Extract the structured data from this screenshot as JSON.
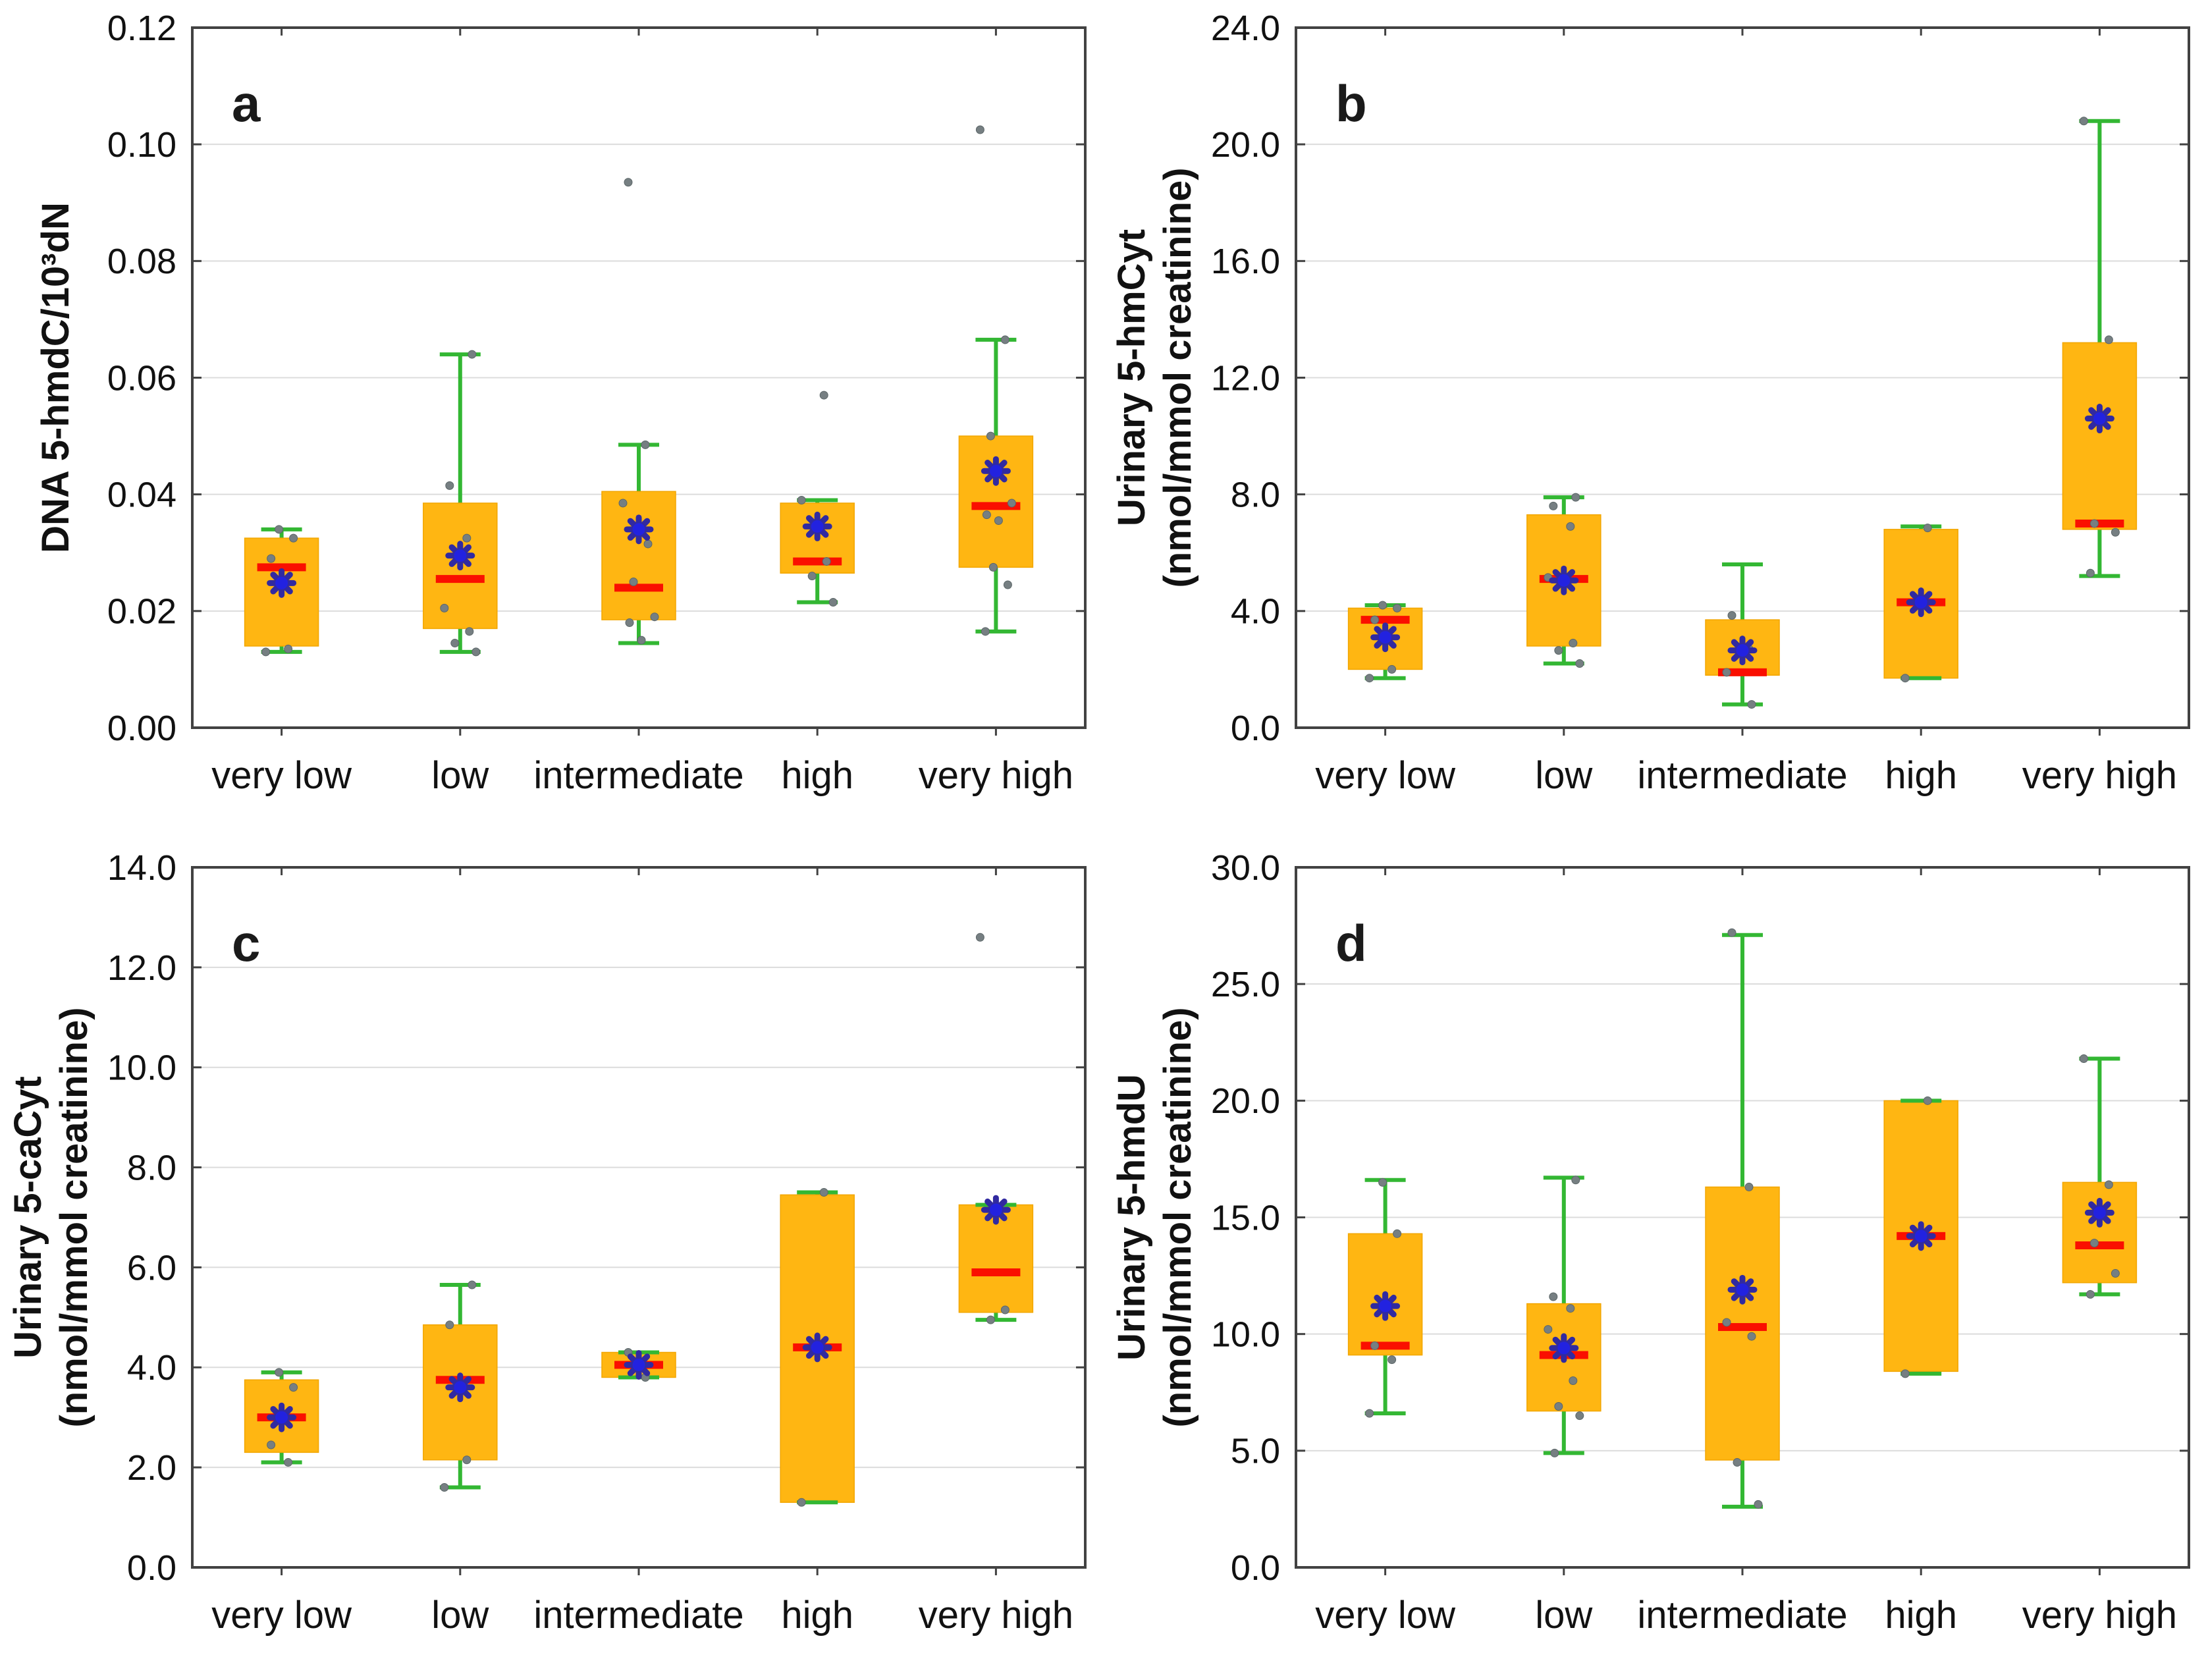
{
  "figure_type": "four-panel-boxplot-figure",
  "chart_data": [
    {
      "type": "box",
      "panel_label": "a",
      "ylabel_lines": [
        "DNA 5-hmdC/10³dN"
      ],
      "ylim": [
        0,
        0.12
      ],
      "ytick_step": 0.02,
      "ytick_decimals": 2,
      "grid": true,
      "categories": [
        "very low",
        "low",
        "intermediate",
        "high",
        "very high"
      ],
      "boxes": [
        {
          "category": "very low",
          "q1": 0.014,
          "q3": 0.0325,
          "median": 0.0275,
          "mean": 0.0248,
          "whisker_low": 0.013,
          "whisker_high": 0.034,
          "points": [
            0.034,
            0.0325,
            0.029,
            0.0135,
            0.013
          ]
        },
        {
          "category": "low",
          "q1": 0.017,
          "q3": 0.0385,
          "median": 0.0255,
          "mean": 0.0295,
          "whisker_low": 0.013,
          "whisker_high": 0.064,
          "points": [
            0.064,
            0.0415,
            0.0325,
            0.0205,
            0.0165,
            0.0145,
            0.013
          ]
        },
        {
          "category": "intermediate",
          "q1": 0.0185,
          "q3": 0.0405,
          "median": 0.024,
          "mean": 0.034,
          "whisker_low": 0.0145,
          "whisker_high": 0.0485,
          "points": [
            0.0935,
            0.0485,
            0.0385,
            0.0315,
            0.025,
            0.019,
            0.018,
            0.015
          ]
        },
        {
          "category": "high",
          "q1": 0.0265,
          "q3": 0.0385,
          "median": 0.0285,
          "mean": 0.0345,
          "whisker_low": 0.0215,
          "whisker_high": 0.039,
          "points": [
            0.057,
            0.039,
            0.0285,
            0.026,
            0.0215
          ]
        },
        {
          "category": "very high",
          "q1": 0.0275,
          "q3": 0.05,
          "median": 0.038,
          "mean": 0.044,
          "whisker_low": 0.0165,
          "whisker_high": 0.0665,
          "points": [
            0.1025,
            0.0665,
            0.05,
            0.0385,
            0.0365,
            0.0355,
            0.0275,
            0.0245,
            0.0165
          ]
        }
      ]
    },
    {
      "type": "box",
      "panel_label": "b",
      "ylabel_lines": [
        "Urinary 5-hmCyt",
        "(nmol/mmol creatinine)"
      ],
      "ylim": [
        0,
        24
      ],
      "ytick_step": 4,
      "ytick_decimals": 1,
      "grid": true,
      "categories": [
        "very low",
        "low",
        "intermediate",
        "high",
        "very high"
      ],
      "boxes": [
        {
          "category": "very low",
          "q1": 2.0,
          "q3": 4.1,
          "median": 3.7,
          "mean": 3.1,
          "whisker_low": 1.7,
          "whisker_high": 4.2,
          "points": [
            4.2,
            4.1,
            3.7,
            2.0,
            1.7
          ]
        },
        {
          "category": "low",
          "q1": 2.8,
          "q3": 7.3,
          "median": 5.1,
          "mean": 5.05,
          "whisker_low": 2.2,
          "whisker_high": 7.9,
          "points": [
            7.9,
            7.6,
            6.9,
            5.15,
            2.9,
            2.65,
            2.2
          ]
        },
        {
          "category": "intermediate",
          "q1": 1.8,
          "q3": 3.7,
          "median": 1.9,
          "mean": 2.65,
          "whisker_low": 0.8,
          "whisker_high": 5.6,
          "points": [
            3.85,
            2.7,
            1.9,
            0.8
          ]
        },
        {
          "category": "high",
          "q1": 1.7,
          "q3": 6.8,
          "median": 4.3,
          "mean": 4.3,
          "whisker_low": 1.7,
          "whisker_high": 6.9,
          "points": [
            6.85,
            1.7
          ]
        },
        {
          "category": "very high",
          "q1": 6.8,
          "q3": 13.2,
          "median": 7.0,
          "mean": 10.6,
          "whisker_low": 5.2,
          "whisker_high": 20.8,
          "points": [
            20.8,
            13.3,
            7.0,
            6.7,
            5.3
          ]
        }
      ]
    },
    {
      "type": "box",
      "panel_label": "c",
      "ylabel_lines": [
        "Urinary 5-caCyt",
        "(nmol/mmol creatinine)"
      ],
      "ylim": [
        0,
        14
      ],
      "ytick_step": 2,
      "ytick_decimals": 1,
      "grid": true,
      "categories": [
        "very low",
        "low",
        "intermediate",
        "high",
        "very high"
      ],
      "boxes": [
        {
          "category": "very low",
          "q1": 2.3,
          "q3": 3.75,
          "median": 3.0,
          "mean": 3.0,
          "whisker_low": 2.1,
          "whisker_high": 3.9,
          "points": [
            3.9,
            3.6,
            2.45,
            2.1
          ]
        },
        {
          "category": "low",
          "q1": 2.15,
          "q3": 4.85,
          "median": 3.75,
          "mean": 3.6,
          "whisker_low": 1.6,
          "whisker_high": 5.65,
          "points": [
            5.65,
            4.85,
            2.15,
            1.6
          ]
        },
        {
          "category": "intermediate",
          "q1": 3.8,
          "q3": 4.3,
          "median": 4.05,
          "mean": 4.05,
          "whisker_low": 3.8,
          "whisker_high": 4.3,
          "points": [
            4.3,
            3.8
          ]
        },
        {
          "category": "high",
          "q1": 1.3,
          "q3": 7.45,
          "median": 4.4,
          "mean": 4.4,
          "whisker_low": 1.3,
          "whisker_high": 7.5,
          "points": [
            7.5,
            1.3
          ]
        },
        {
          "category": "very high",
          "q1": 5.1,
          "q3": 7.25,
          "median": 5.9,
          "mean": 7.15,
          "whisker_low": 4.95,
          "whisker_high": 7.25,
          "points": [
            12.6,
            5.15,
            4.95
          ]
        }
      ]
    },
    {
      "type": "box",
      "panel_label": "d",
      "ylabel_lines": [
        "Urinary 5-hmdU",
        "(nmol/mmol creatinine)"
      ],
      "ylim": [
        0,
        30
      ],
      "ytick_step": 5,
      "ytick_decimals": 1,
      "grid": true,
      "categories": [
        "very low",
        "low",
        "intermediate",
        "high",
        "very high"
      ],
      "boxes": [
        {
          "category": "very low",
          "q1": 9.1,
          "q3": 14.3,
          "median": 9.5,
          "mean": 11.2,
          "whisker_low": 6.6,
          "whisker_high": 16.6,
          "points": [
            16.5,
            14.3,
            9.5,
            8.9,
            6.6
          ]
        },
        {
          "category": "low",
          "q1": 6.7,
          "q3": 11.3,
          "median": 9.1,
          "mean": 9.4,
          "whisker_low": 4.9,
          "whisker_high": 16.7,
          "points": [
            16.6,
            11.6,
            11.1,
            10.2,
            8.0,
            6.9,
            6.5,
            4.9
          ]
        },
        {
          "category": "intermediate",
          "q1": 4.6,
          "q3": 16.3,
          "median": 10.3,
          "mean": 11.9,
          "whisker_low": 2.6,
          "whisker_high": 27.1,
          "points": [
            27.2,
            16.3,
            10.5,
            9.9,
            4.5,
            2.7
          ]
        },
        {
          "category": "high",
          "q1": 8.4,
          "q3": 20.0,
          "median": 14.2,
          "mean": 14.2,
          "whisker_low": 8.3,
          "whisker_high": 20.0,
          "points": [
            20.0,
            8.3
          ]
        },
        {
          "category": "very high",
          "q1": 12.2,
          "q3": 16.5,
          "median": 13.8,
          "mean": 15.2,
          "whisker_low": 11.7,
          "whisker_high": 21.8,
          "points": [
            21.8,
            16.4,
            13.9,
            12.6,
            11.7
          ]
        }
      ]
    }
  ],
  "style_colors": {
    "box_fill": "#FFB612",
    "box_edge": "#F2A602",
    "whisker_green": "#33B733",
    "median_red": "#FA0F00",
    "mean_star_spokes": "#312AA0",
    "mean_star_center": "#2222E0",
    "data_point_grey": "#767F82",
    "gridline": "#DCDCDC",
    "axis_border": "#424242",
    "text": "#111111"
  }
}
